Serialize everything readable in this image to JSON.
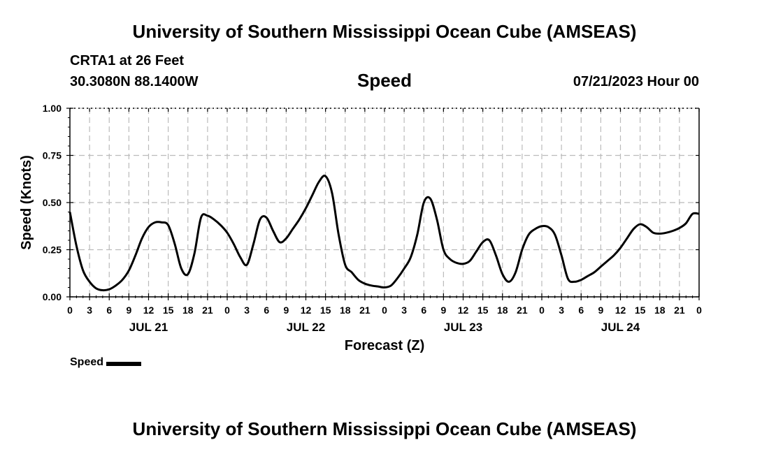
{
  "header": {
    "title": "University of Southern Mississippi Ocean Cube (AMSEAS)",
    "station": "CRTA1 at 26 Feet",
    "coordinates": "30.3080N  88.1400W",
    "variable": "Speed",
    "datetime": "07/21/2023 Hour 00"
  },
  "footer": {
    "title": "University of Southern Mississippi Ocean Cube (AMSEAS)"
  },
  "legend": {
    "label": "Speed"
  },
  "chart_data": {
    "type": "line",
    "title": "Speed",
    "xlabel": "Forecast (Z)",
    "ylabel": "Speed (Knots)",
    "ylim": [
      0,
      1
    ],
    "xlim": [
      0,
      96
    ],
    "grid": true,
    "yticks": [
      0,
      0.25,
      0.5,
      0.75,
      1.0
    ],
    "ytick_labels": [
      "0.00",
      "0.25",
      "0.50",
      "0.75",
      "1.00"
    ],
    "xtick_hours": [
      0,
      3,
      6,
      9,
      12,
      15,
      18,
      21,
      24,
      27,
      30,
      33,
      36,
      39,
      42,
      45,
      48,
      51,
      54,
      57,
      60,
      63,
      66,
      69,
      72,
      75,
      78,
      81,
      84,
      87,
      90,
      93,
      96
    ],
    "xtick_labels": [
      "0",
      "3",
      "6",
      "9",
      "12",
      "15",
      "18",
      "21",
      "0",
      "3",
      "6",
      "9",
      "12",
      "15",
      "18",
      "21",
      "0",
      "3",
      "6",
      "9",
      "12",
      "15",
      "18",
      "21",
      "0",
      "3",
      "6",
      "9",
      "12",
      "15",
      "18",
      "21",
      "0"
    ],
    "date_labels": [
      {
        "hour": 12,
        "label": "JUL 21"
      },
      {
        "hour": 36,
        "label": "JUL 22"
      },
      {
        "hour": 60,
        "label": "JUL 23"
      },
      {
        "hour": 84,
        "label": "JUL 24"
      }
    ],
    "series": [
      {
        "name": "Speed",
        "color": "#000000",
        "x": [
          0,
          1,
          2,
          3,
          4,
          5,
          6,
          7,
          8,
          9,
          10,
          11,
          12,
          13,
          14,
          15,
          16,
          17,
          18,
          19,
          20,
          21,
          22,
          23,
          24,
          25,
          26,
          27,
          28,
          29,
          30,
          31,
          32,
          33,
          34,
          35,
          36,
          37,
          38,
          39,
          40,
          41,
          42,
          43,
          44,
          45,
          46,
          47,
          48,
          49,
          50,
          51,
          52,
          53,
          54,
          55,
          56,
          57,
          58,
          59,
          60,
          61,
          62,
          63,
          64,
          65,
          66,
          67,
          68,
          69,
          70,
          71,
          72,
          73,
          74,
          75,
          76,
          77,
          78,
          79,
          80,
          81,
          82,
          83,
          84,
          85,
          86,
          87,
          88,
          89,
          90,
          91,
          92,
          93,
          94,
          95,
          96
        ],
        "values": [
          0.45,
          0.27,
          0.14,
          0.08,
          0.045,
          0.035,
          0.04,
          0.06,
          0.09,
          0.14,
          0.22,
          0.31,
          0.37,
          0.395,
          0.395,
          0.38,
          0.28,
          0.15,
          0.12,
          0.23,
          0.42,
          0.43,
          0.41,
          0.38,
          0.34,
          0.28,
          0.21,
          0.17,
          0.28,
          0.41,
          0.42,
          0.35,
          0.29,
          0.31,
          0.36,
          0.41,
          0.47,
          0.54,
          0.61,
          0.64,
          0.55,
          0.33,
          0.17,
          0.13,
          0.09,
          0.07,
          0.06,
          0.055,
          0.05,
          0.06,
          0.1,
          0.15,
          0.21,
          0.33,
          0.5,
          0.52,
          0.41,
          0.25,
          0.2,
          0.18,
          0.175,
          0.19,
          0.24,
          0.29,
          0.3,
          0.22,
          0.12,
          0.08,
          0.13,
          0.25,
          0.33,
          0.36,
          0.375,
          0.37,
          0.33,
          0.22,
          0.095,
          0.08,
          0.09,
          0.11,
          0.13,
          0.16,
          0.19,
          0.22,
          0.26,
          0.31,
          0.36,
          0.385,
          0.37,
          0.34,
          0.335,
          0.34,
          0.35,
          0.365,
          0.39,
          0.44,
          0.44
        ]
      }
    ]
  }
}
